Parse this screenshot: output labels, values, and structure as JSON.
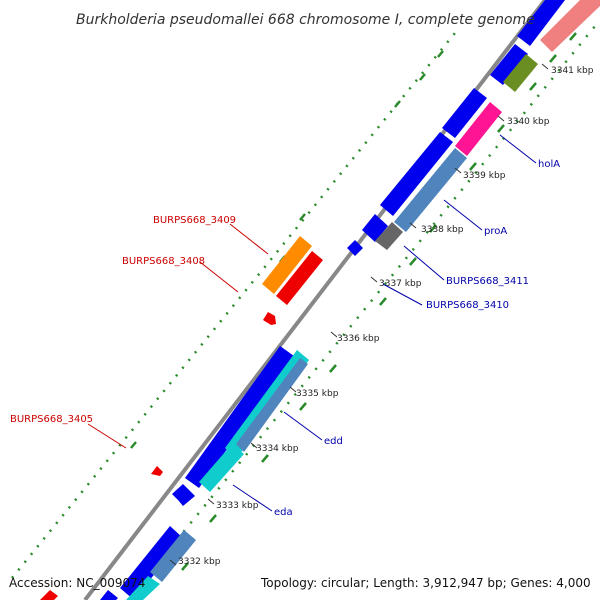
{
  "title": "Burkholderia pseudomallei 668 chromosome I, complete genome",
  "footer": {
    "accession": "Accession: NC_009074",
    "summary": "Topology: circular; Length: 3,912,947 bp; Genes: 4,000"
  },
  "ticks": [
    "3332 kbp",
    "3333 kbp",
    "3334 kbp",
    "3335 kbp",
    "3336 kbp",
    "3337 kbp",
    "3338 kbp",
    "3339 kbp",
    "3340 kbp",
    "3341 kbp"
  ],
  "gene_labels": {
    "left": [
      "BURPS668_3409",
      "BURPS668_3408",
      "BURPS668_3405"
    ],
    "right": [
      "holA",
      "proA",
      "BURPS668_3411",
      "BURPS668_3410",
      "edd",
      "eda"
    ]
  },
  "colors": {
    "forward_label": "#cc0000",
    "reverse_label": "#0000aa",
    "backbone": "#888888",
    "gc_dots": "#2a8a2a",
    "cds_blue": "#0000ee",
    "cyan": "#11cccc",
    "steel": "#4f84bd",
    "red": "#ee0000",
    "orange": "#ff8c00",
    "pink": "#ff1493",
    "olive": "#6b8e23",
    "salmon": "#f08080",
    "gray": "#666666"
  }
}
